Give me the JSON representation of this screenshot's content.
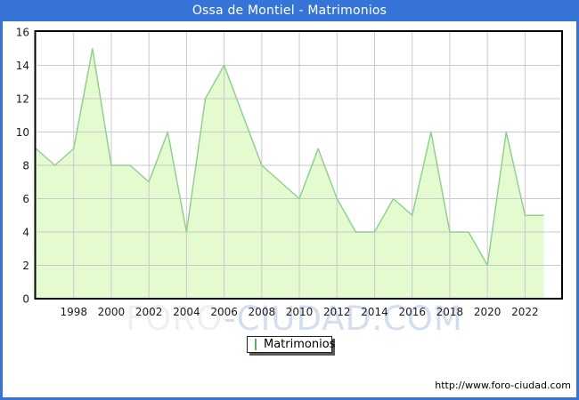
{
  "window": {
    "title": "Ossa de Montiel - Matrimonios"
  },
  "watermark": {
    "left_part": "FORO",
    "right_part": "-CIUDAD.COM"
  },
  "legend": {
    "label": "Matrimonios"
  },
  "footer": {
    "url": "http://www.foro-ciudad.com"
  },
  "colors": {
    "frame_blue": "#3674d8",
    "title_text": "#ffffff",
    "area_fill": "#e3fbce",
    "line_green": "#92cf92",
    "gridline": "#c9c9ce",
    "plot_border": "#000000",
    "tick_text": "#1a1a1a",
    "legend_marker_fill": "#b5ee8c",
    "legend_marker_border": "#69a869",
    "watermark_gray": "#f1f0ec",
    "watermark_blue": "#d3def2"
  },
  "chart_data": {
    "type": "area",
    "title": "Ossa de Montiel - Matrimonios",
    "series_name": "Matrimonios",
    "x": [
      1996,
      1997,
      1998,
      1999,
      2000,
      2001,
      2002,
      2003,
      2004,
      2005,
      2006,
      2007,
      2008,
      2009,
      2010,
      2011,
      2012,
      2013,
      2014,
      2015,
      2016,
      2017,
      2018,
      2019,
      2020,
      2021,
      2022,
      2023
    ],
    "values": [
      9,
      8,
      9,
      15,
      8,
      8,
      7,
      10,
      4,
      12,
      14,
      11,
      8,
      7,
      6,
      9,
      6,
      4,
      4,
      6,
      5,
      10,
      4,
      4,
      2,
      10,
      5,
      5
    ],
    "xticks": [
      1998,
      2000,
      2002,
      2004,
      2006,
      2008,
      2010,
      2012,
      2014,
      2016,
      2018,
      2020,
      2022
    ],
    "yticks": [
      0,
      2,
      4,
      6,
      8,
      10,
      12,
      14,
      16
    ],
    "ylim": [
      0,
      16
    ],
    "xlabel": "",
    "ylabel": "",
    "grid": true,
    "legend_position": "bottom-center"
  }
}
